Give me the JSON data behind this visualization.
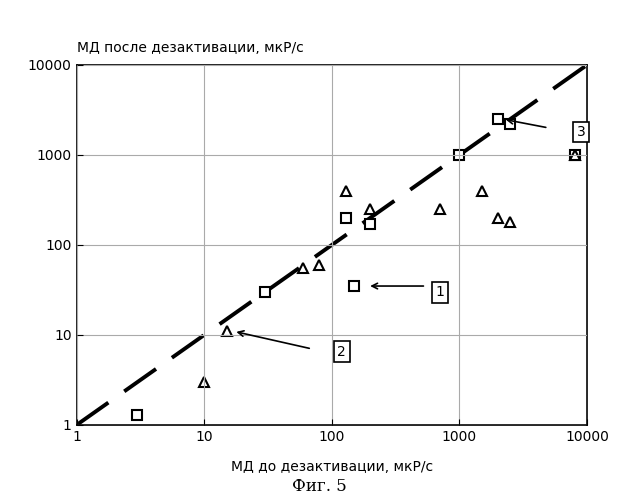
{
  "title_y": "МД после дезактивации, мкР/с",
  "title_x": "МД до дезактивации, мкР/с",
  "fig_caption": "Фиг. 5",
  "xlim": [
    1,
    10000
  ],
  "ylim": [
    1,
    10000
  ],
  "squares": [
    [
      3,
      1.3
    ],
    [
      30,
      30
    ],
    [
      130,
      200
    ],
    [
      200,
      170
    ],
    [
      150,
      35
    ],
    [
      1000,
      1000
    ],
    [
      2000,
      2500
    ],
    [
      2500,
      2200
    ],
    [
      8000,
      1000
    ]
  ],
  "triangles": [
    [
      10,
      3
    ],
    [
      15,
      11
    ],
    [
      60,
      55
    ],
    [
      80,
      60
    ],
    [
      130,
      400
    ],
    [
      200,
      250
    ],
    [
      700,
      250
    ],
    [
      1500,
      400
    ],
    [
      2000,
      200
    ],
    [
      2500,
      180
    ],
    [
      8000,
      1000
    ]
  ],
  "background_color": "#ffffff",
  "grid_color": "#aaaaaa",
  "line_color": "#000000",
  "marker_color": "#000000"
}
